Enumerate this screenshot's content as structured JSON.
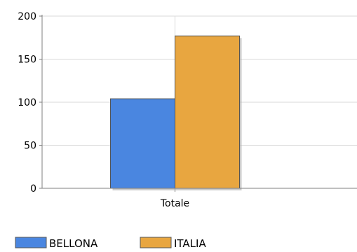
{
  "chart_data": {
    "type": "bar",
    "categories": [
      "Totale"
    ],
    "series": [
      {
        "name": "BELLONA",
        "values": [
          104
        ],
        "color": "#4a86e0"
      },
      {
        "name": "ITALIA",
        "values": [
          177
        ],
        "color": "#e8a640"
      }
    ],
    "title": "",
    "xlabel": "",
    "ylabel": "",
    "ylim": [
      0,
      200
    ],
    "yticks": [
      0,
      50,
      100,
      150,
      200
    ],
    "grid": true,
    "legend_position": "bottom-left"
  }
}
